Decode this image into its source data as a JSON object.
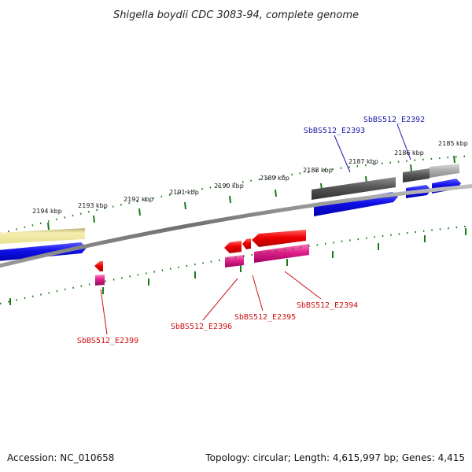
{
  "title": "Shigella boydii CDC 3083-94, complete genome",
  "footer": {
    "accession": "Accession: NC_010658",
    "summary": "Topology: circular; Length: 4,615,997 bp; Genes: 4,415"
  },
  "ticks": [
    "2194 kbp",
    "2193 kbp",
    "2192 kbp",
    "2191 kbp",
    "2190 kbp",
    "2189 kbp",
    "2188 kbp",
    "2187 kbp",
    "2186 kbp",
    "2185 kbp"
  ],
  "gene_labels": {
    "top": [
      "SbBS512_E2393",
      "SbBS512_E2392"
    ],
    "bottom": [
      "SbBS512_E2399",
      "SbBS512_E2396",
      "SbBS512_E2395",
      "SbBS512_E2394"
    ]
  },
  "colors": {
    "backbone": "#808080",
    "tick": "#1a7a1a",
    "gene_blue": "#1010e0",
    "gene_red": "#ee0000",
    "gene_pink": "#e0208c",
    "gene_dark_gray": "#555555",
    "gene_light_gray": "#b0b0b0",
    "gene_khaki": "#eee8a0"
  }
}
